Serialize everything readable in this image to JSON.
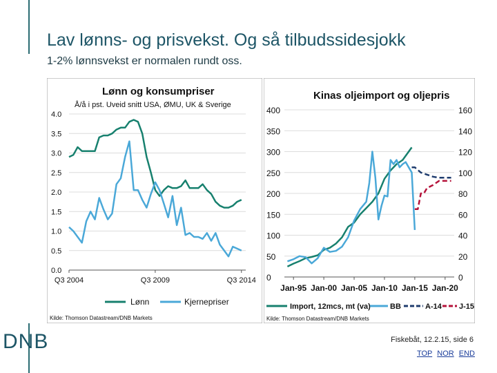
{
  "slide": {
    "title": "Lav lønns- og prisvekst. Og så tilbudssidesjokk",
    "subtitle": "1-2% lønnsvekst er normalen rundt oss.",
    "logo": "DNB",
    "footer_text": "Fiskebåt, 12.2.15, side 6",
    "links": [
      "TOP",
      "NOR",
      "END"
    ],
    "colors": {
      "accent": "#2a6b72",
      "title": "#1d5566",
      "link": "#1a3c9a"
    }
  },
  "chart_data": [
    {
      "type": "line",
      "title": "Lønn og konsumpriser",
      "subtitle": "Å/å i pst. Uveid snitt USA, ØMU, UK & Sverige",
      "source": "Kilde: Thomson Datastream/DNB Markets",
      "ylim": [
        0,
        4.0
      ],
      "yticks": [
        "4.0",
        "3.5",
        "3.0",
        "2.5",
        "2.0",
        "1.5",
        "1.0",
        "0.5",
        "0.0"
      ],
      "xticks": [
        "Q3 2004",
        "Q3 2009",
        "Q3 2014"
      ],
      "xrange": [
        2004.5,
        2014.75
      ],
      "grid": true,
      "legend_position": "bottom",
      "colors": {
        "Lønn": "#17806e",
        "Kjernepriser": "#4aa8d8"
      },
      "series": [
        {
          "name": "Lønn",
          "x": [
            2004.5,
            2004.75,
            2005,
            2005.25,
            2005.5,
            2005.75,
            2006,
            2006.25,
            2006.5,
            2006.75,
            2007,
            2007.25,
            2007.5,
            2007.75,
            2008,
            2008.25,
            2008.5,
            2008.75,
            2009,
            2009.25,
            2009.5,
            2009.75,
            2010,
            2010.25,
            2010.5,
            2010.75,
            2011,
            2011.25,
            2011.5,
            2011.75,
            2012,
            2012.25,
            2012.5,
            2012.75,
            2013,
            2013.25,
            2013.5,
            2013.75,
            2014,
            2014.25,
            2014.5
          ],
          "values": [
            2.9,
            2.95,
            3.15,
            3.05,
            3.05,
            3.05,
            3.05,
            3.4,
            3.45,
            3.45,
            3.5,
            3.6,
            3.65,
            3.65,
            3.8,
            3.85,
            3.8,
            3.5,
            2.9,
            2.5,
            2.05,
            1.9,
            2.05,
            2.15,
            2.1,
            2.1,
            2.15,
            2.3,
            2.1,
            2.1,
            2.1,
            2.2,
            2.05,
            1.95,
            1.75,
            1.65,
            1.6,
            1.6,
            1.65,
            1.75,
            1.8
          ]
        },
        {
          "name": "Kjernepriser",
          "x": [
            2004.5,
            2004.75,
            2005,
            2005.25,
            2005.5,
            2005.75,
            2006,
            2006.25,
            2006.5,
            2006.75,
            2007,
            2007.25,
            2007.5,
            2007.75,
            2008,
            2008.25,
            2008.5,
            2008.75,
            2009,
            2009.25,
            2009.5,
            2009.75,
            2010,
            2010.25,
            2010.5,
            2010.75,
            2011,
            2011.25,
            2011.5,
            2011.75,
            2012,
            2012.25,
            2012.5,
            2012.75,
            2013,
            2013.25,
            2013.5,
            2013.75,
            2014,
            2014.25,
            2014.5
          ],
          "values": [
            1.1,
            1.0,
            0.85,
            0.7,
            1.25,
            1.5,
            1.3,
            1.85,
            1.55,
            1.3,
            1.45,
            2.2,
            2.35,
            2.9,
            3.3,
            2.05,
            2.05,
            1.8,
            1.6,
            1.95,
            2.25,
            2.05,
            1.7,
            1.35,
            1.9,
            1.15,
            1.6,
            0.9,
            0.95,
            0.85,
            0.85,
            0.8,
            0.95,
            0.75,
            0.95,
            0.65,
            0.5,
            0.35,
            0.6,
            0.55,
            0.5
          ]
        }
      ]
    },
    {
      "type": "line",
      "title": "Kinas oljeimport og oljepris",
      "source": "Kilde: Thomson  Datastream/DNB Markets",
      "ylim_left": [
        0,
        400
      ],
      "ylim_right": [
        0,
        160
      ],
      "yticks_left": [
        "400",
        "350",
        "300",
        "250",
        "200",
        "150",
        "100",
        "50",
        "0"
      ],
      "yticks_right": [
        "160",
        "140",
        "120",
        "100",
        "80",
        "60",
        "40",
        "20",
        "0"
      ],
      "xticks": [
        "Jan-95",
        "Jan-00",
        "Jan-05",
        "Jan-10",
        "Jan-15",
        "Jan-20"
      ],
      "xrange": [
        1993.5,
        2021.5
      ],
      "grid": true,
      "legend_position": "bottom",
      "colors": {
        "Import, 12mcs, mt (va)": "#17806e",
        "BB": "#4aa8d8",
        "A-14": "#1f3c6e",
        "J-15": "#b5123a"
      },
      "series": [
        {
          "name": "Import, 12mcs, mt (va)",
          "axis": "left",
          "x": [
            1994,
            1995,
            1996,
            1997,
            1998,
            1999,
            2000,
            2001,
            2002,
            2003,
            2004,
            2005,
            2006,
            2007,
            2008,
            2009,
            2010,
            2011,
            2012,
            2013,
            2014,
            2014.5
          ],
          "values": [
            25,
            32,
            38,
            45,
            48,
            52,
            65,
            70,
            80,
            95,
            120,
            130,
            150,
            165,
            180,
            200,
            235,
            255,
            270,
            280,
            300,
            310
          ]
        },
        {
          "name": "BB",
          "axis": "right",
          "x": [
            1994,
            1995,
            1996,
            1997,
            1998,
            1999,
            2000,
            2001,
            2002,
            2003,
            2004,
            2005,
            2006,
            2007,
            2007.5,
            2008,
            2008.5,
            2009,
            2009.5,
            2010,
            2010.5,
            2011,
            2011.5,
            2012,
            2012.5,
            2013,
            2013.5,
            2014,
            2014.5,
            2015
          ],
          "values": [
            15,
            17,
            20,
            19,
            13,
            18,
            28,
            24,
            25,
            29,
            38,
            54,
            65,
            72,
            90,
            120,
            95,
            55,
            68,
            78,
            77,
            112,
            108,
            112,
            105,
            108,
            110,
            105,
            100,
            45
          ]
        },
        {
          "name": "A-14",
          "axis": "right",
          "x": [
            2014.5,
            2015,
            2016,
            2017,
            2018,
            2019,
            2020,
            2021
          ],
          "values": [
            105,
            105,
            100,
            98,
            96,
            95,
            95,
            95
          ]
        },
        {
          "name": "J-15",
          "axis": "right",
          "x": [
            2015,
            2015.5,
            2016,
            2016.5,
            2017,
            2018,
            2019,
            2020,
            2021
          ],
          "values": [
            65,
            65,
            80,
            80,
            85,
            88,
            92,
            92,
            92
          ]
        }
      ]
    }
  ]
}
